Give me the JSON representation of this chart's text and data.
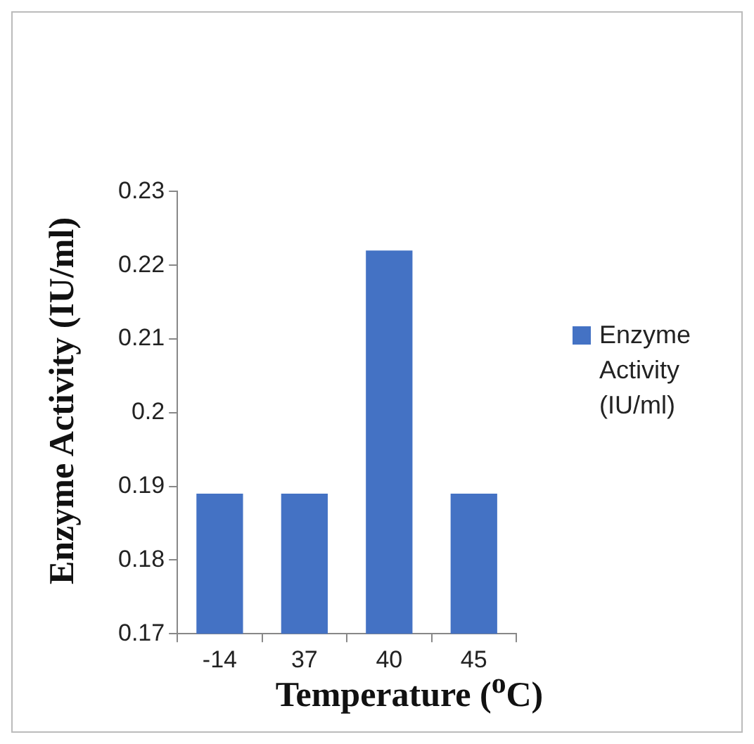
{
  "chart_data": {
    "type": "bar",
    "xlabel": "Temperature ($^{o}$C)",
    "ylabel": "Enzyme Activity (IU/ml)",
    "categories": [
      "-14",
      "37",
      "40",
      "45"
    ],
    "series": [
      {
        "name": "Enzyme Activity (IU/ml)",
        "color": "#4472c4",
        "values": [
          0.189,
          0.189,
          0.222,
          0.189
        ]
      }
    ],
    "ylim": [
      0.17,
      0.23
    ],
    "yticks": [
      0.17,
      0.18,
      0.19,
      0.2,
      0.21,
      0.22,
      0.23
    ],
    "grid": false,
    "legend": "right"
  }
}
